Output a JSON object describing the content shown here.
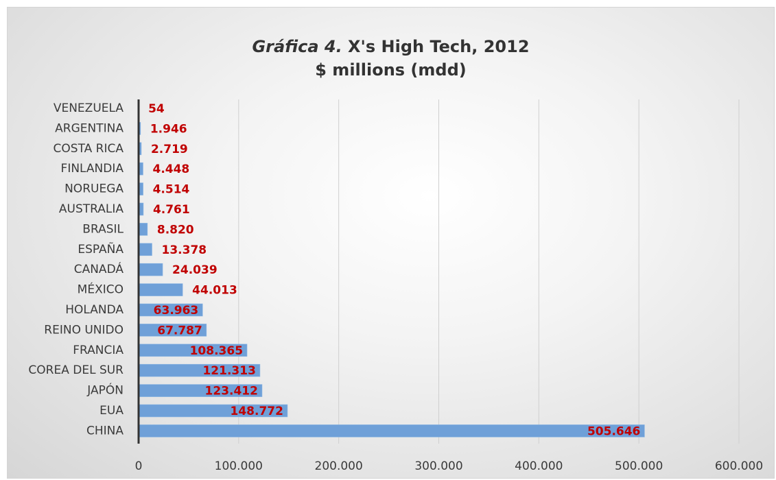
{
  "chart_data": {
    "type": "bar",
    "orientation": "horizontal",
    "title_prefix": "Gráfica 4.",
    "title_main": "X's High Tech, 2012",
    "subtitle": "$ millions (mdd)",
    "xlabel": "",
    "ylabel": "",
    "xlim": [
      0,
      600000
    ],
    "x_ticks": [
      0,
      100000,
      200000,
      300000,
      400000,
      500000,
      600000
    ],
    "x_tick_labels": [
      "0",
      "100.000",
      "200.000",
      "300.000",
      "400.000",
      "500.000",
      "600.000"
    ],
    "grid": "vertical",
    "legend": "none",
    "bar_color": "#6fa0d8",
    "label_color": "#c00000",
    "categories": [
      "VENEZUELA",
      "ARGENTINA",
      "COSTA RICA",
      "FINLANDIA",
      "NORUEGA",
      "AUSTRALIA",
      "BRASIL",
      "ESPAÑA",
      "CANADÁ",
      "MÉXICO",
      "HOLANDA",
      "REINO UNIDO",
      "FRANCIA",
      "COREA DEL SUR",
      "JAPÓN",
      "EUA",
      "CHINA"
    ],
    "values": [
      54,
      1946,
      2719,
      4448,
      4514,
      4761,
      8820,
      13378,
      24039,
      44013,
      63963,
      67787,
      108365,
      121313,
      123412,
      148772,
      505646
    ],
    "value_labels": [
      "54",
      "1.946",
      "2.719",
      "4.448",
      "4.514",
      "4.761",
      "8.820",
      "13.378",
      "24.039",
      "44.013",
      "63.963",
      "67.787",
      "108.365",
      "121.313",
      "123.412",
      "148.772",
      "505.646"
    ]
  }
}
